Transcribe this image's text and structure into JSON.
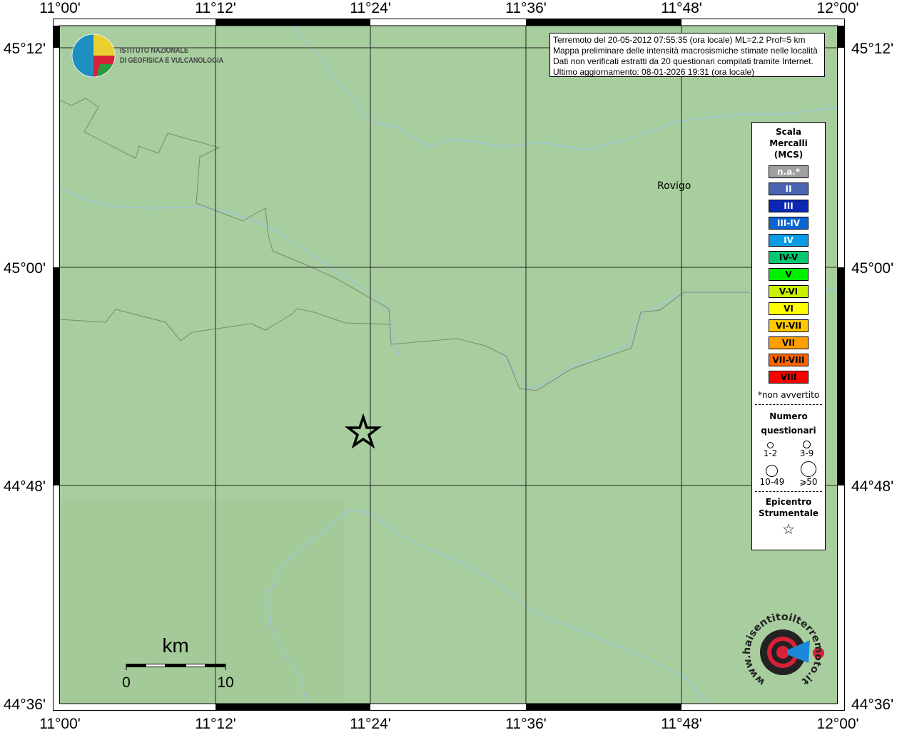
{
  "map": {
    "lon_labels": [
      "11°00'",
      "11°12'",
      "11°24'",
      "11°36'",
      "11°48'",
      "12°00'"
    ],
    "lat_labels": [
      "45°12'",
      "45°00'",
      "44°48'",
      "44°36'"
    ],
    "city": "Rovigo",
    "colors": {
      "land": "#a8cd9e",
      "river": "#9cc7d6",
      "border": "#7a8a70"
    }
  },
  "info": {
    "line1": "Terremoto del 20-05-2012 07:55:35 (ora locale) ML=2.2 Prof=5 km",
    "line2": "Mappa preliminare delle intensità macrosismiche stimate nelle località",
    "line3": "Dati non verificati estratti da 20 questionari compilati tramite Internet.",
    "line4": "Ultimo aggiornamento: 08-01-2026 19:31 (ora locale)"
  },
  "logo_ingv": {
    "line1": "ISTITUTO NAZIONALE",
    "line2": "DI GEOFISICA E VULCANOLOGIA"
  },
  "logo_hsit": "www.haisentitoilterremoto.it",
  "legend": {
    "title1": "Scala",
    "title2": "Mercalli",
    "title3": "(MCS)",
    "scale": [
      {
        "label": "n.a.*",
        "color": "#a0a0a0",
        "text": "#fff"
      },
      {
        "label": "II",
        "color": "#4a64b4",
        "text": "#fff"
      },
      {
        "label": "III",
        "color": "#0a28b4",
        "text": "#fff"
      },
      {
        "label": "III-IV",
        "color": "#0a64d2",
        "text": "#fff"
      },
      {
        "label": "IV",
        "color": "#0a9be6",
        "text": "#fff"
      },
      {
        "label": "IV-V",
        "color": "#00c86e",
        "text": "#000"
      },
      {
        "label": "V",
        "color": "#00f000",
        "text": "#000"
      },
      {
        "label": "V-VI",
        "color": "#c8f000",
        "text": "#000"
      },
      {
        "label": "VI",
        "color": "#ffff00",
        "text": "#000"
      },
      {
        "label": "VI-VII",
        "color": "#ffc800",
        "text": "#000"
      },
      {
        "label": "VII",
        "color": "#ffa000",
        "text": "#000"
      },
      {
        "label": "VII-VIII",
        "color": "#ff6400",
        "text": "#000"
      },
      {
        "label": "VIII",
        "color": "#ff0000",
        "text": "#000"
      }
    ],
    "note": "*non avvertito",
    "q_title1": "Numero",
    "q_title2": "questionari",
    "q": [
      "1-2",
      "3-9",
      "10-49",
      "⩾50"
    ],
    "epi1": "Epicentro",
    "epi2": "Strumentale"
  },
  "scalebar": {
    "unit": "km",
    "min": "0",
    "max": "10"
  }
}
